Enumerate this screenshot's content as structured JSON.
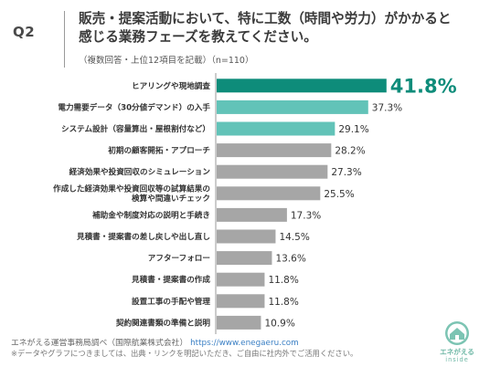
{
  "question": {
    "label": "Q2",
    "title": "販売・提案活動において、特に工数（時間や労力）がかかると\n感じる業務フェーズを教えてください。",
    "note": "（複数回答・上位12項目を記載）（n=110）"
  },
  "colors": {
    "highlight": "#0e8c7a",
    "secondary": "#62c3b8",
    "default": "#a6a6a6"
  },
  "chart_data": {
    "type": "bar",
    "orientation": "horizontal",
    "categories": [
      "ヒアリングや現地調査",
      "電力需要データ（30分値デマンド）の入手",
      "システム設計（容量算出・屋根割付など）",
      "初期の顧客開拓・アプローチ",
      "経済効果や投資回収のシミュレーション",
      "作成した経済効果や投資回収等の試算結果の\n検算や間違いチェック",
      "補助金や制度対応の説明と手続き",
      "見積書・提案書の差し戻しや出し直し",
      "アフターフォロー",
      "見積書・提案書の作成",
      "設置工事の手配や管理",
      "契約関連書類の準備と説明"
    ],
    "values": [
      41.8,
      37.3,
      29.1,
      28.2,
      27.3,
      25.5,
      17.3,
      14.5,
      13.6,
      11.8,
      11.8,
      10.9
    ],
    "value_labels": [
      "41.8%",
      "37.3%",
      "29.1%",
      "28.2%",
      "27.3%",
      "25.5%",
      "17.3%",
      "14.5%",
      "13.6%",
      "11.8%",
      "11.8%",
      "10.9%"
    ],
    "bar_color_keys": [
      "highlight",
      "secondary",
      "secondary",
      "default",
      "default",
      "default",
      "default",
      "default",
      "default",
      "default",
      "default",
      "default"
    ],
    "xlim": [
      0,
      45
    ],
    "grid": false,
    "legend": "none"
  },
  "footer": {
    "source": "エネがえる運営事務局調べ（国際航業株式会社）",
    "url": "https://www.enegaeru.com",
    "note": "※データやグラフにつきましては、出典・リンクを明記いただき、ご自由に社内外でご活用ください。"
  },
  "logo": {
    "line1": "エネがえる",
    "line2": "inside"
  }
}
